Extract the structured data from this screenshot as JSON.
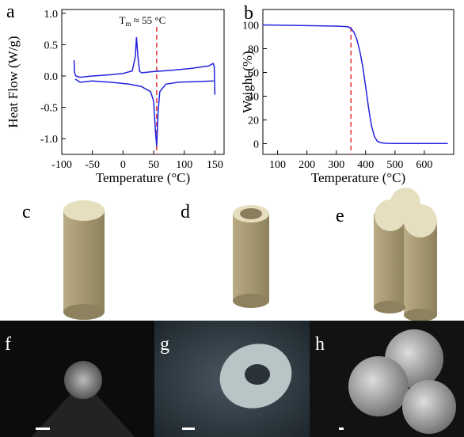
{
  "chart_data": [
    {
      "type": "line",
      "panel_label": "a",
      "x_label": "Temperature (°C)",
      "y_label": "Heat Flow (W/g)",
      "xlim": [
        -100,
        165
      ],
      "ylim": [
        -1.25,
        1.06
      ],
      "xticks": [
        -100,
        -50,
        0,
        50,
        100,
        150
      ],
      "yticks": [
        {
          "value": -1.0,
          "label": "-1.0"
        },
        -0.5,
        {
          "value": 0,
          "label": "0.0"
        },
        0.5,
        {
          "value": 1.0,
          "label": "1.0"
        }
      ],
      "marker_x": 55,
      "marker_color": "#e03030",
      "annotation": {
        "text": "T",
        "sub": "m",
        "tail": " ≈ 55 °C"
      },
      "series": [
        {
          "color": "#2222dd",
          "x": [
            -80,
            -79,
            -77,
            -70,
            -50,
            -20,
            0,
            15,
            20,
            22,
            24,
            27,
            30,
            50,
            80,
            110,
            140,
            147,
            149,
            150
          ],
          "values": [
            0.25,
            0.05,
            0.0,
            -0.02,
            0.0,
            0.02,
            0.04,
            0.08,
            0.3,
            0.62,
            0.35,
            0.08,
            0.05,
            0.07,
            0.09,
            0.12,
            0.16,
            0.2,
            0.15,
            -0.3
          ]
        },
        {
          "color": "#2222dd",
          "x": [
            -78,
            -70,
            -50,
            -20,
            10,
            30,
            45,
            50,
            53,
            55,
            57,
            60,
            70,
            90,
            120,
            148
          ],
          "values": [
            -0.05,
            -0.1,
            -0.08,
            -0.1,
            -0.13,
            -0.17,
            -0.25,
            -0.4,
            -0.9,
            -1.12,
            -0.6,
            -0.25,
            -0.13,
            -0.1,
            -0.09,
            -0.08
          ]
        }
      ]
    },
    {
      "type": "line",
      "panel_label": "b",
      "x_label": "Temperature (°C)",
      "y_label": "Weight (%)",
      "xlim": [
        50,
        700
      ],
      "ylim": [
        -9,
        113
      ],
      "xticks": [
        100,
        200,
        300,
        400,
        500,
        600
      ],
      "yticks": [
        0,
        20,
        40,
        60,
        80,
        100
      ],
      "marker_x": 350,
      "marker_color": "#e03030",
      "series": [
        {
          "color": "#2222dd",
          "x": [
            50,
            100,
            200,
            300,
            340,
            350,
            360,
            370,
            380,
            390,
            400,
            410,
            420,
            430,
            440,
            450,
            460,
            480,
            500,
            550,
            600,
            680
          ],
          "values": [
            100,
            99.8,
            99.4,
            99,
            98.5,
            97,
            94,
            88,
            78,
            65,
            48,
            30,
            15,
            6,
            2,
            1,
            0.5,
            0.3,
            0.2,
            0.1,
            0.1,
            0.1
          ]
        }
      ]
    }
  ],
  "panels": [
    {
      "label": "c"
    },
    {
      "label": "d"
    },
    {
      "label": "e"
    },
    {
      "label": "f"
    },
    {
      "label": "g"
    },
    {
      "label": "h"
    }
  ]
}
